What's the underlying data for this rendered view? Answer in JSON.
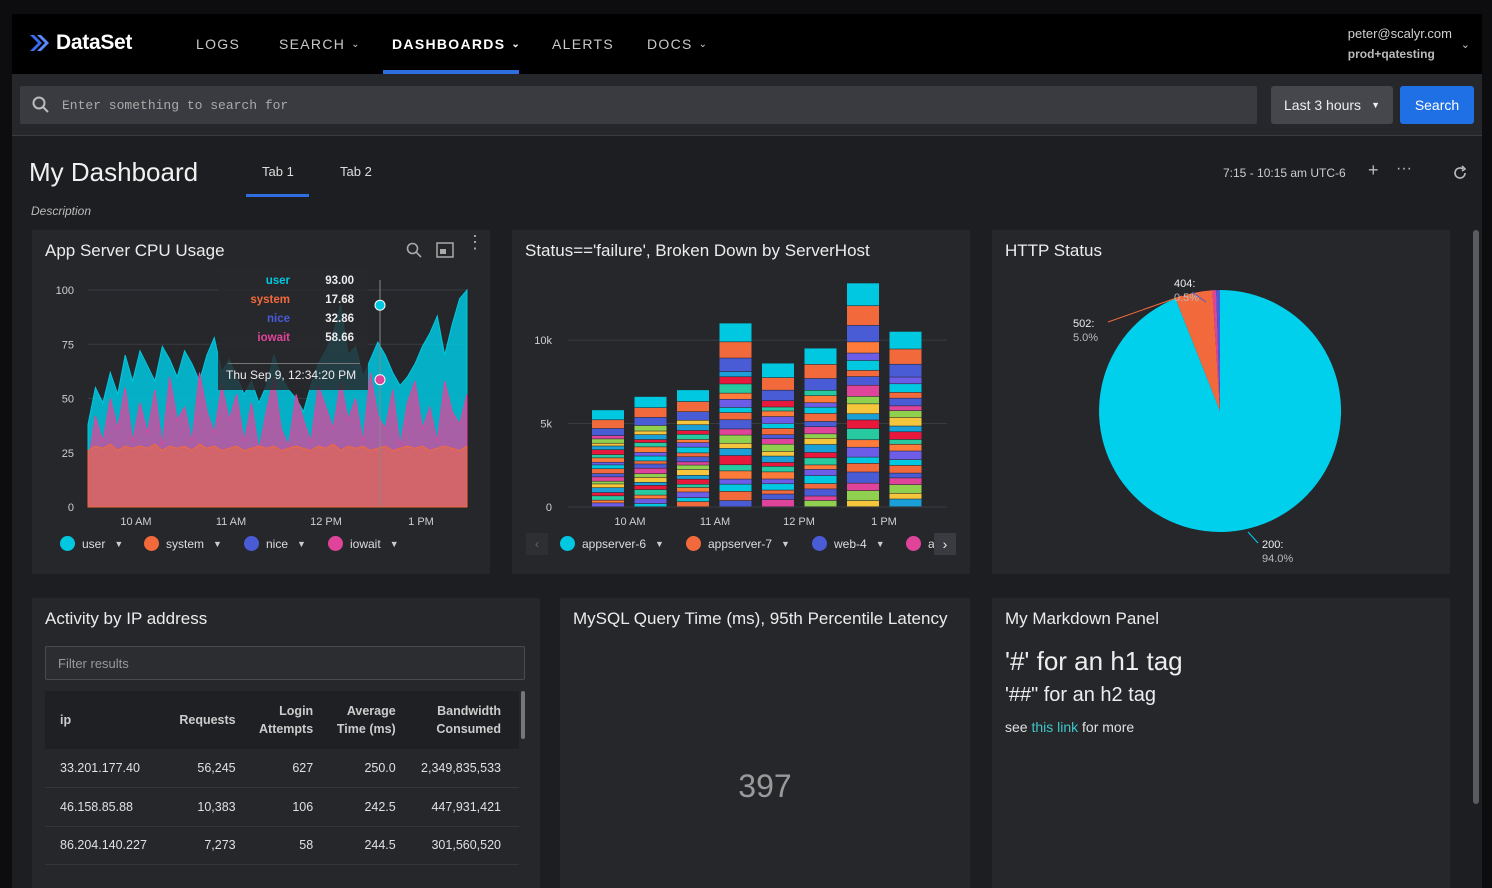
{
  "nav": {
    "logo": "DataSet",
    "items": [
      {
        "label": "LOGS",
        "dropdown": false
      },
      {
        "label": "SEARCH",
        "dropdown": true
      },
      {
        "label": "DASHBOARDS",
        "dropdown": true,
        "active": true
      },
      {
        "label": "ALERTS",
        "dropdown": false
      },
      {
        "label": "DOCS",
        "dropdown": true
      }
    ],
    "user_email": "peter@scalyr.com",
    "user_account": "prod+qatesting"
  },
  "search": {
    "placeholder": "Enter something to search for",
    "time_range": "Last 3 hours",
    "button": "Search"
  },
  "dashboard": {
    "title": "My Dashboard",
    "description": "Description",
    "tabs": [
      "Tab 1",
      "Tab 2"
    ],
    "range": "7:15 - 10:15 am UTC-6"
  },
  "cpu_panel": {
    "title": "App Server CPU Usage",
    "tooltip": {
      "rows": [
        {
          "name": "user",
          "value": "93.00",
          "color": "#00c8e0"
        },
        {
          "name": "system",
          "value": "17.68",
          "color": "#f26a3c"
        },
        {
          "name": "nice",
          "value": "32.86",
          "color": "#4a5bd6"
        },
        {
          "name": "iowait",
          "value": "58.66",
          "color": "#e0449a"
        }
      ],
      "time": "Thu Sep 9, 12:34:20 PM"
    },
    "legend": [
      {
        "name": "user",
        "color": "#00c8e0"
      },
      {
        "name": "system",
        "color": "#f26a3c"
      },
      {
        "name": "nice",
        "color": "#4a5bd6"
      },
      {
        "name": "iowait",
        "color": "#e0449a"
      }
    ]
  },
  "status_panel": {
    "title": "Status=='failure', Broken Down by ServerHost",
    "legend": [
      {
        "name": "appserver-6",
        "color": "#00c8e0"
      },
      {
        "name": "appserver-7",
        "color": "#f26a3c"
      },
      {
        "name": "web-4",
        "color": "#4a5bd6"
      }
    ],
    "legend_partial_color": "#e0449a",
    "legend_partial_text": "a"
  },
  "http_panel": {
    "title": "HTTP Status"
  },
  "table_panel": {
    "title": "Activity by IP address",
    "filter_placeholder": "Filter results",
    "columns": [
      {
        "l1": "ip",
        "l2": ""
      },
      {
        "l1": "Requests",
        "l2": ""
      },
      {
        "l1": "Login",
        "l2": "Attempts"
      },
      {
        "l1": "Average",
        "l2": "Time (ms)"
      },
      {
        "l1": "Bandwidth",
        "l2": "Consumed"
      }
    ],
    "rows": [
      [
        "33.201.177.40",
        "56,245",
        "627",
        "250.0",
        "2,349,835,533"
      ],
      [
        "46.158.85.88",
        "10,383",
        "106",
        "242.5",
        "447,931,421"
      ],
      [
        "86.204.140.227",
        "7,273",
        "58",
        "244.5",
        "301,560,520"
      ]
    ]
  },
  "mysql_panel": {
    "title": "MySQL Query Time (ms), 95th Percentile Latency",
    "value": "397"
  },
  "markdown_panel": {
    "title": "My Markdown Panel",
    "h1": "'#' for an h1 tag",
    "h2": "'##\" for an h2 tag",
    "p_before": "see ",
    "p_link": "this link",
    "p_after": " for more"
  },
  "chart_data": [
    {
      "type": "area",
      "title": "App Server CPU Usage",
      "x_ticks": [
        "10 AM",
        "11 AM",
        "12 PM",
        "1 PM"
      ],
      "y_ticks": [
        "0",
        "25",
        "50",
        "75",
        "100"
      ],
      "ylim": [
        0,
        100
      ],
      "series": [
        {
          "name": "user",
          "color": "#00c8e0",
          "values": [
            38,
            55,
            48,
            62,
            52,
            70,
            58,
            72,
            65,
            58,
            74,
            68,
            60,
            72,
            66,
            58,
            70,
            78,
            62,
            68,
            60,
            52,
            58,
            48,
            56,
            70,
            60,
            54,
            50,
            44,
            56,
            66,
            72,
            80,
            93,
            70,
            74,
            60,
            68,
            76,
            70,
            62,
            56,
            60,
            66,
            74,
            80,
            88,
            70,
            84,
            96,
            100
          ]
        },
        {
          "name": "iowait",
          "color": "#e0449a",
          "values": [
            20,
            42,
            30,
            50,
            36,
            55,
            30,
            48,
            34,
            54,
            28,
            60,
            40,
            46,
            30,
            62,
            44,
            34,
            56,
            40,
            52,
            30,
            48,
            26,
            44,
            60,
            36,
            28,
            52,
            40,
            30,
            56,
            46,
            36,
            58,
            40,
            50,
            30,
            62,
            42,
            36,
            54,
            28,
            48,
            58,
            36,
            46,
            30,
            58,
            44,
            38,
            52
          ]
        },
        {
          "name": "system",
          "color": "#f26a3c",
          "values": [
            26,
            28,
            27,
            29,
            26,
            28,
            27,
            28,
            27,
            29,
            26,
            28,
            27,
            28,
            26,
            29,
            27,
            28,
            26,
            27,
            28,
            26,
            27,
            28,
            27,
            28,
            26,
            27,
            28,
            27,
            26,
            28,
            27,
            29,
            26,
            28,
            27,
            28,
            26,
            27,
            28,
            26,
            27,
            28,
            27,
            28,
            26,
            27,
            28,
            27,
            26,
            28
          ]
        }
      ],
      "tooltip_point": {
        "time": "Thu Sep 9, 12:34:20 PM",
        "user": 93.0,
        "system": 17.68,
        "nice": 32.86,
        "iowait": 58.66
      }
    },
    {
      "type": "bar",
      "title": "Status=='failure', Broken Down by ServerHost",
      "x_ticks": [
        "10 AM",
        "11 AM",
        "12 PM",
        "1 PM"
      ],
      "y_ticks": [
        "0",
        "5k",
        "10k"
      ],
      "ylim": [
        0,
        13000
      ],
      "series_colors": [
        "#00c8e0",
        "#f26a3c",
        "#4a5bd6",
        "#e0449a",
        "#8fd14f",
        "#f5c63c",
        "#1a9fd6",
        "#e8173c",
        "#26c9a0",
        "#ff7b3a",
        "#6c5ce7"
      ],
      "bar_totals": [
        5800,
        6600,
        7000,
        11000,
        8600,
        9500,
        13400,
        10500
      ]
    },
    {
      "type": "pie",
      "title": "HTTP Status",
      "slices": [
        {
          "label": "200",
          "pct": "94.0%",
          "value": 94.0,
          "color": "#00d0ec"
        },
        {
          "label": "502",
          "pct": "5.0%",
          "value": 5.0,
          "color": "#f26a3c"
        },
        {
          "label": "404",
          "pct": "0.5%",
          "value": 0.5,
          "color": "#4a5bd6"
        },
        {
          "label": "",
          "pct": "",
          "value": 0.5,
          "color": "#e0449a"
        }
      ]
    }
  ]
}
